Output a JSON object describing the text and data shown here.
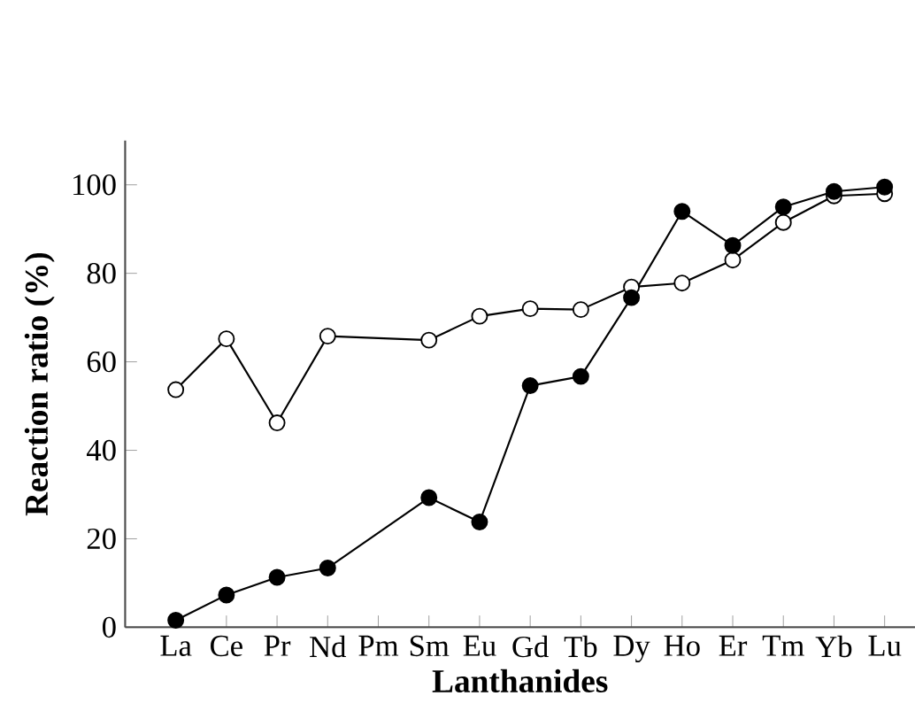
{
  "chart_data": {
    "type": "line",
    "xlabel": "Lanthanides",
    "ylabel": "Reaction ratio (%)",
    "categories": [
      "La",
      "Ce",
      "Pr",
      "Nd",
      "Pm",
      "Sm",
      "Eu",
      "Gd",
      "Tb",
      "Dy",
      "Ho",
      "Er",
      "Tm",
      "Yb",
      "Lu"
    ],
    "ylim": [
      0,
      110
    ],
    "yticks": [
      0,
      20,
      40,
      60,
      80,
      100
    ],
    "grid": false,
    "series": [
      {
        "color": "#000000",
        "marker": "circle",
        "values": [
          53.7,
          65.2,
          46.2,
          65.8,
          null,
          64.9,
          70.3,
          72,
          71.8,
          76.9,
          77.8,
          83,
          91.5,
          97.5,
          98
        ]
      },
      {
        "color": "#000000",
        "marker": "circle",
        "values": [
          1.6,
          7.3,
          11.3,
          13.4,
          null,
          29.3,
          23.8,
          54.6,
          56.7,
          74.5,
          94,
          86.3,
          95,
          98.5,
          99.5
        ]
      }
    ]
  }
}
